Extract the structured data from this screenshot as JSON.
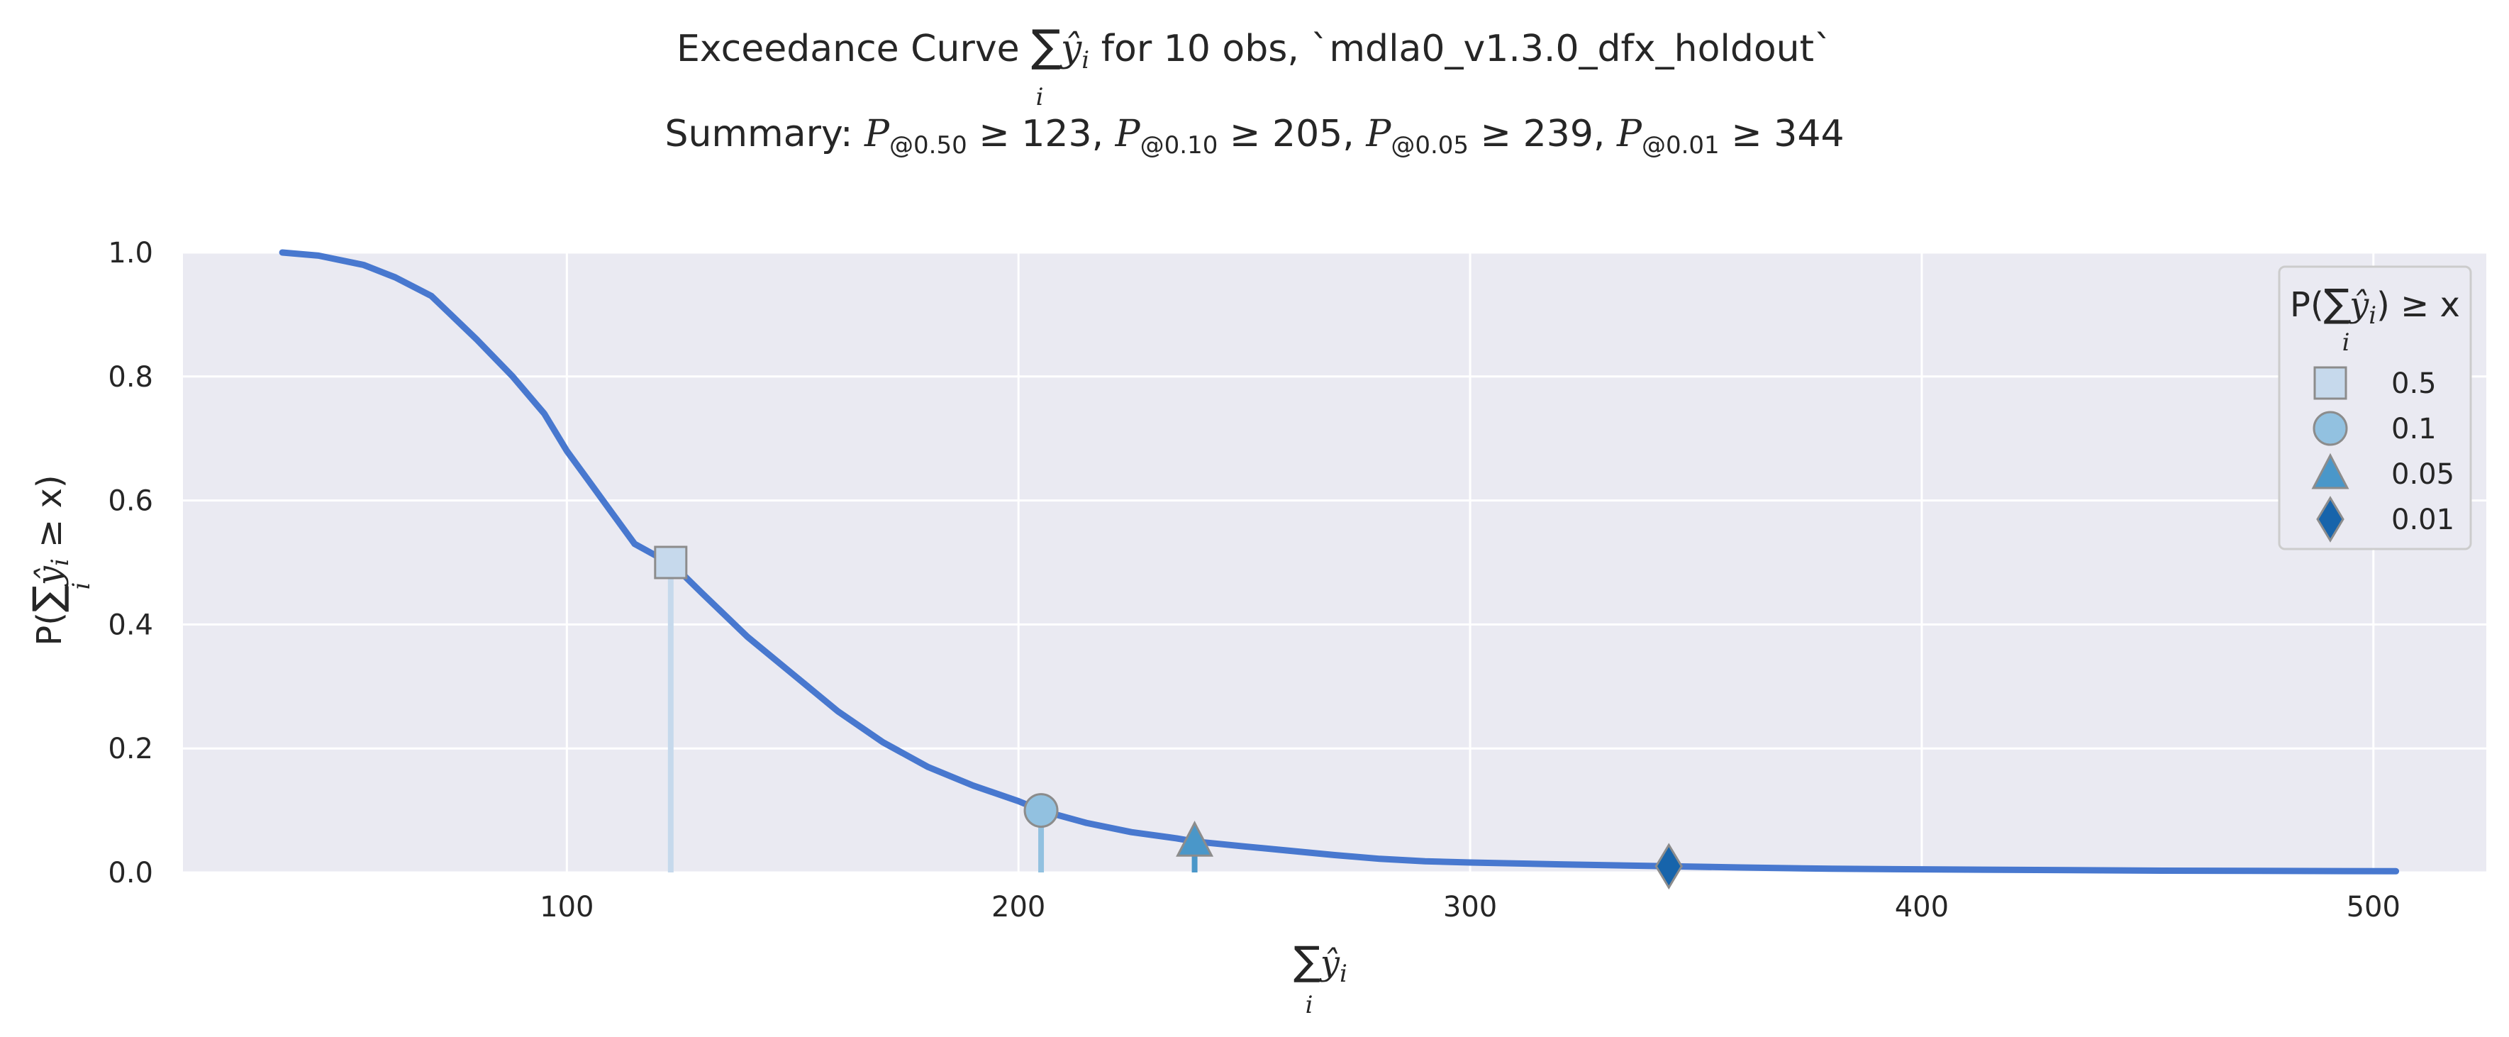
{
  "chart_data": {
    "type": "line",
    "title": {
      "line1_prefix": "Exceedance Curve",
      "line1_sum": "∑",
      "line1_sum_index": "i",
      "line1_var": "ŷ",
      "line1_var_sub": "i",
      "line1_suffix": " for 10 obs, `mdla0_v1.3.0_dfx_holdout`",
      "line2_prefix": "Summary: ",
      "summary_items": [
        {
          "prefix": "P",
          "sub": "@0.50",
          "rel": " ≥ 123",
          "sep": ", "
        },
        {
          "prefix": "P",
          "sub": "@0.10",
          "rel": " ≥ 205",
          "sep": ", "
        },
        {
          "prefix": "P",
          "sub": "@0.05",
          "rel": " ≥ 239",
          "sep": ", "
        },
        {
          "prefix": "P",
          "sub": "@0.01",
          "rel": " ≥ 344",
          "sep": ""
        }
      ]
    },
    "xlabel": {
      "sum": "∑",
      "index": "i",
      "var": "ŷ",
      "var_sub": "i"
    },
    "ylabel": {
      "prefix": "P(",
      "sum": "∑",
      "index": "i",
      "var": "ŷ",
      "var_sub": "i",
      "suffix": " ≥ x)"
    },
    "xlim": [
      15,
      525
    ],
    "ylim": [
      0,
      1
    ],
    "x_ticks": [
      100,
      200,
      300,
      400,
      500
    ],
    "y_ticks": [
      0.0,
      0.2,
      0.4,
      0.6,
      0.8,
      1.0
    ],
    "y_tick_labels": [
      "0.0",
      "0.2",
      "0.4",
      "0.6",
      "0.8",
      "1.0"
    ],
    "grid": true,
    "series": [
      {
        "color": "#4878cf",
        "x": [
          37,
          45,
          55,
          62,
          70,
          80,
          88,
          95,
          100,
          105,
          110,
          115,
          120,
          123,
          130,
          140,
          150,
          160,
          170,
          180,
          190,
          200,
          205,
          215,
          225,
          235,
          239,
          250,
          260,
          270,
          280,
          290,
          300,
          320,
          344,
          360,
          380,
          400,
          450,
          505
        ],
        "y": [
          1.0,
          0.995,
          0.98,
          0.96,
          0.93,
          0.86,
          0.8,
          0.74,
          0.68,
          0.63,
          0.58,
          0.53,
          0.51,
          0.5,
          0.45,
          0.38,
          0.32,
          0.26,
          0.21,
          0.17,
          0.14,
          0.115,
          0.1,
          0.08,
          0.065,
          0.055,
          0.05,
          0.042,
          0.035,
          0.028,
          0.022,
          0.018,
          0.016,
          0.013,
          0.01,
          0.008,
          0.006,
          0.005,
          0.003,
          0.002
        ]
      }
    ],
    "markers": [
      {
        "x": 123,
        "y": 0.5,
        "shape": "square",
        "label": "0.5",
        "fill": "#c6d9ec",
        "stem_color": "#c6d9ec"
      },
      {
        "x": 205,
        "y": 0.1,
        "shape": "circle",
        "label": "0.1",
        "fill": "#92c1e0",
        "stem_color": "#92c1e0"
      },
      {
        "x": 239,
        "y": 0.05,
        "shape": "triangle",
        "label": "0.05",
        "fill": "#4a97c9",
        "stem_color": "#4a97c9"
      },
      {
        "x": 344,
        "y": 0.01,
        "shape": "diamond",
        "label": "0.01",
        "fill": "#1764ab",
        "stem_color": "#1764ab"
      }
    ],
    "legend": {
      "position": "top-right",
      "title": {
        "prefix": "P(",
        "sum": "∑",
        "index": "i",
        "var": "ŷ",
        "var_sub": "i",
        "suffix": ") ≥ x"
      }
    },
    "colors": {
      "plot_bg": "#eaeaf2",
      "grid": "#ffffff",
      "marker_edge": "#8c8c8c"
    }
  }
}
